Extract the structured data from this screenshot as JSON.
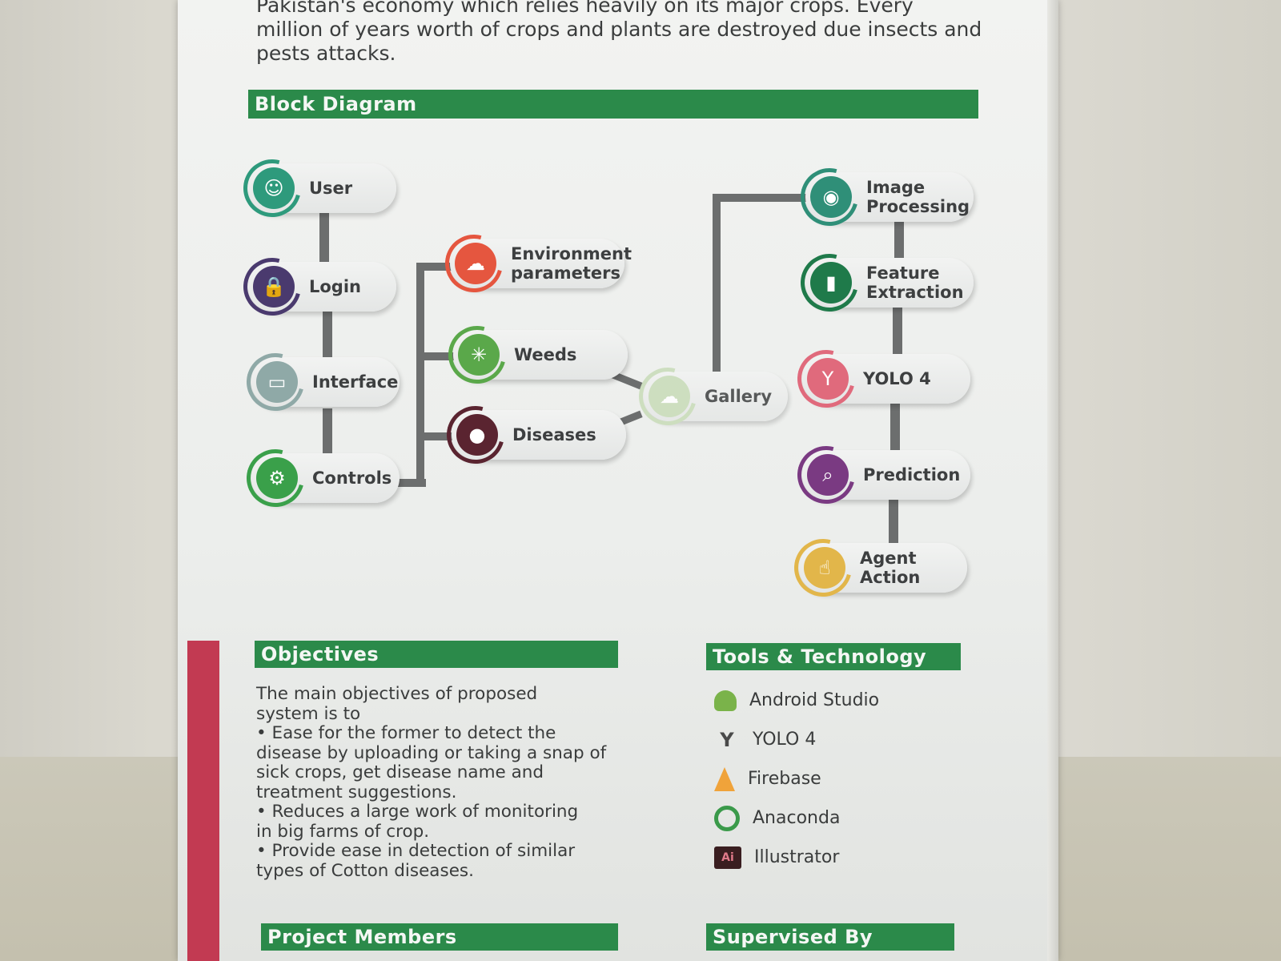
{
  "intro": {
    "partial_line": "Pakistan's economy which relies heavily on its major crops. Every",
    "lines": "million of years worth of crops and plants are destroyed due insects and pests attacks."
  },
  "sections": {
    "block_diagram": "Block Diagram",
    "objectives": "Objectives",
    "tools": "Tools & Technology",
    "members": "Project Members",
    "supervised": "Supervised By"
  },
  "diagram": {
    "left": [
      {
        "label": "User",
        "icon": "user-avatar-icon",
        "color": "#2e9a7c"
      },
      {
        "label": "Login",
        "icon": "login-lock-icon",
        "color": "#4a3a6e"
      },
      {
        "label": "Interface",
        "icon": "monitor-icon",
        "color": "#8fa9a7"
      },
      {
        "label": "Controls",
        "icon": "gear-icon",
        "color": "#3aa04a"
      }
    ],
    "middle": [
      {
        "label": "Environment\nparameters",
        "icon": "cloud-sun-icon",
        "color": "#e5563f"
      },
      {
        "label": "Weeds",
        "icon": "leaf-icon",
        "color": "#5aa84a"
      },
      {
        "label": "Diseases",
        "icon": "virus-icon",
        "color": "#5a2430"
      }
    ],
    "gallery": {
      "label": "Gallery",
      "icon": "cloud-icon",
      "color": "#c8dcb8"
    },
    "right": [
      {
        "label": "Image\nProcessing",
        "icon": "eye-scan-icon",
        "color": "#2f8f78"
      },
      {
        "label": "Feature\nExtraction",
        "icon": "bottle-icon",
        "color": "#1f7a4a"
      },
      {
        "label": "YOLO 4",
        "icon": "yolo-icon",
        "color": "#e06a7c"
      },
      {
        "label": "Prediction",
        "icon": "document-search-icon",
        "color": "#7a3a82"
      },
      {
        "label": "Agent\nAction",
        "icon": "hand-tap-icon",
        "color": "#e2b64a"
      }
    ]
  },
  "objectives_text": "The main objectives of proposed\nsystem is to\n• Ease for the former to detect the\ndisease by uploading or taking a snap of\nsick crops, get disease name and\ntreatment suggestions.\n• Reduces a large work of monitoring\nin big farms of crop.\n• Provide ease in detection of similar\ntypes of Cotton diseases.",
  "tools": [
    {
      "label": "Android Studio",
      "icon": "android-icon",
      "color": "#7ab34a"
    },
    {
      "label": "YOLO 4",
      "icon": "yolo-icon",
      "color": "#4a4a4a"
    },
    {
      "label": "Firebase",
      "icon": "flame-icon",
      "color": "#f0a33a"
    },
    {
      "label": "Anaconda",
      "icon": "ring-icon",
      "color": "#3a9a4a"
    },
    {
      "label": "Illustrator",
      "icon": "ai-icon",
      "color": "#3a1e20"
    }
  ],
  "ai_glyph": "Ai"
}
